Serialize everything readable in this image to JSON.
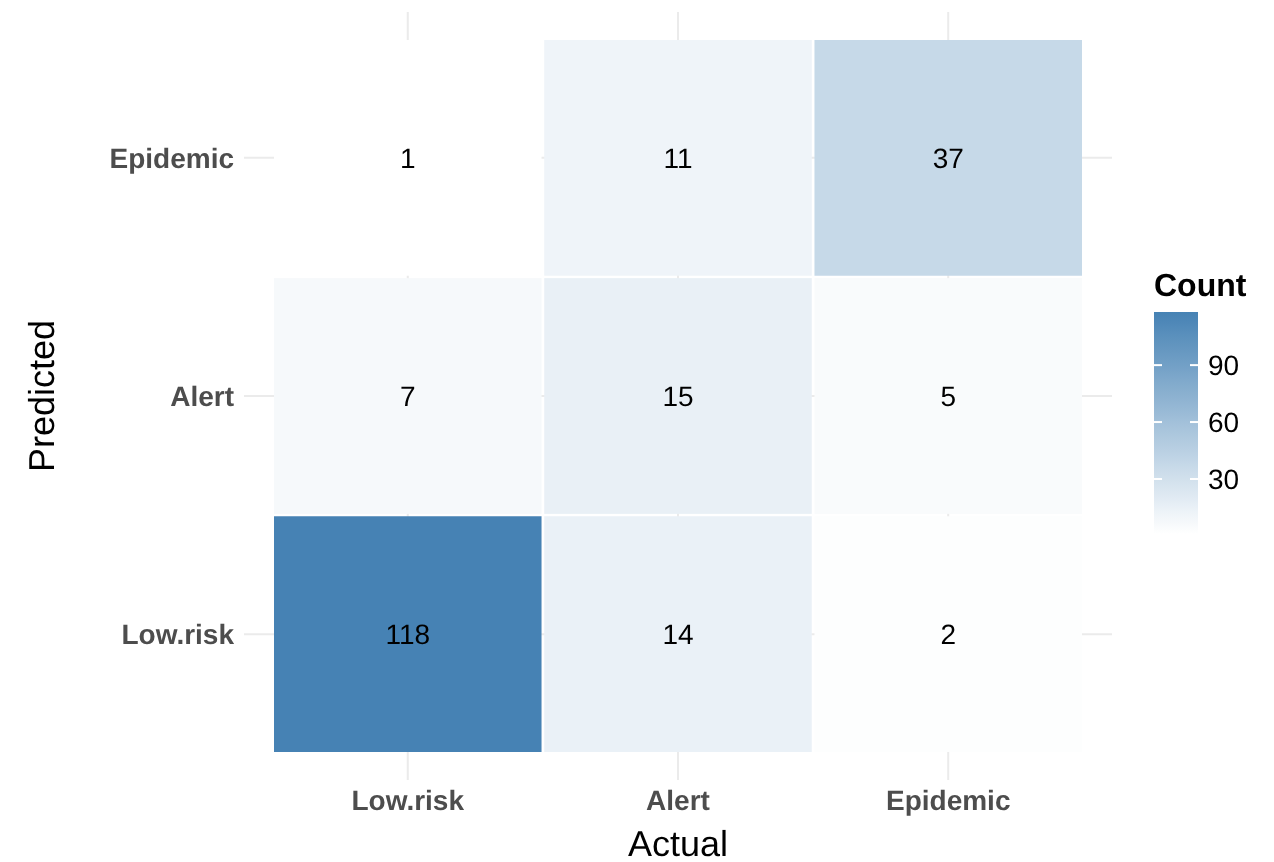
{
  "chart_data": {
    "type": "heatmap",
    "xlabel": "Actual",
    "ylabel": "Predicted",
    "legend_title": "Count",
    "categories": [
      "Low.risk",
      "Alert",
      "Epidemic"
    ],
    "y_categories": [
      "Epidemic",
      "Alert",
      "Low.risk"
    ],
    "cells": [
      [
        1,
        11,
        37
      ],
      [
        7,
        15,
        5
      ],
      [
        118,
        14,
        2
      ]
    ],
    "data_labels": true,
    "grid": true,
    "clim": [
      1,
      118
    ],
    "cticks": [
      30,
      60,
      90
    ],
    "colors": [
      "#ffffff",
      "#4682b4"
    ]
  }
}
